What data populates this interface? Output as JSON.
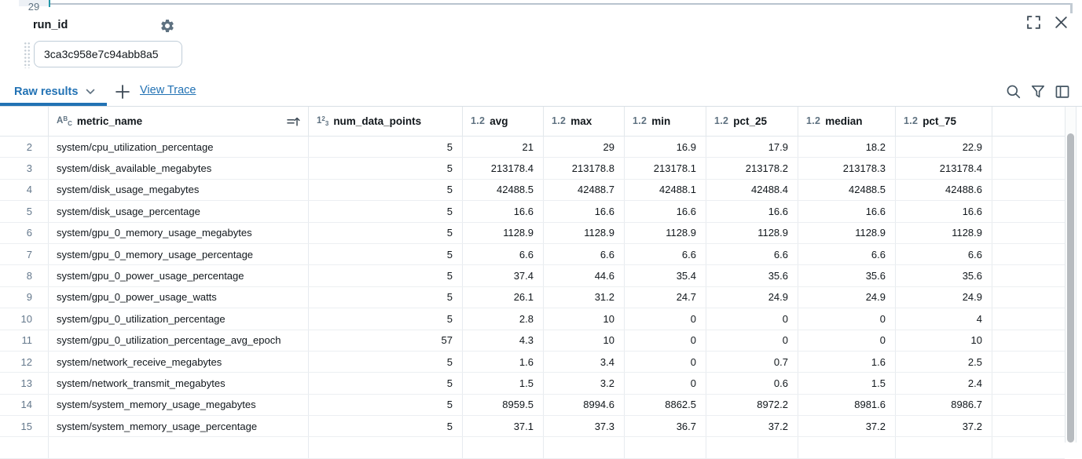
{
  "editor": {
    "line_number": "29"
  },
  "widget": {
    "label": "run_id",
    "value": "3ca3c958e7c94abb8a5"
  },
  "toolbar": {
    "active_tab": "Raw results",
    "view_trace": "View Trace"
  },
  "icons": {
    "settings": "gear",
    "fullscreen": "expand-corners",
    "close": "x",
    "search": "magnifier",
    "filter": "funnel",
    "panel": "layout-panel",
    "sort": "sort-ascending",
    "tab_caret": "chevron-down",
    "add": "plus",
    "drag": "grip-dots"
  },
  "type_glyphs": {
    "string": [
      "A",
      "B",
      "C"
    ],
    "int": [
      "1",
      "2",
      "3"
    ],
    "float": "1.2"
  },
  "colors": {
    "accent_blue": "#2272B4",
    "icon_slate": "#5F7281",
    "text_dark": "#11171C",
    "row_number": "#64788C",
    "border": "#E2E7EB",
    "cursor_teal": "#2497A8",
    "scroll_thumb": "#B7BBBF"
  },
  "table": {
    "columns": [
      {
        "label": "metric_name",
        "type": "string",
        "sorted": "asc"
      },
      {
        "label": "num_data_points",
        "type": "int"
      },
      {
        "label": "avg",
        "type": "float"
      },
      {
        "label": "max",
        "type": "float"
      },
      {
        "label": "min",
        "type": "float"
      },
      {
        "label": "pct_25",
        "type": "float"
      },
      {
        "label": "median",
        "type": "float"
      },
      {
        "label": "pct_75",
        "type": "float"
      }
    ],
    "rows": [
      {
        "n": "2",
        "cells": [
          "system/cpu_utilization_percentage",
          "5",
          "21",
          "29",
          "16.9",
          "17.9",
          "18.2",
          "22.9"
        ]
      },
      {
        "n": "3",
        "cells": [
          "system/disk_available_megabytes",
          "5",
          "213178.4",
          "213178.8",
          "213178.1",
          "213178.2",
          "213178.3",
          "213178.4"
        ]
      },
      {
        "n": "4",
        "cells": [
          "system/disk_usage_megabytes",
          "5",
          "42488.5",
          "42488.7",
          "42488.1",
          "42488.4",
          "42488.5",
          "42488.6"
        ]
      },
      {
        "n": "5",
        "cells": [
          "system/disk_usage_percentage",
          "5",
          "16.6",
          "16.6",
          "16.6",
          "16.6",
          "16.6",
          "16.6"
        ]
      },
      {
        "n": "6",
        "cells": [
          "system/gpu_0_memory_usage_megabytes",
          "5",
          "1128.9",
          "1128.9",
          "1128.9",
          "1128.9",
          "1128.9",
          "1128.9"
        ]
      },
      {
        "n": "7",
        "cells": [
          "system/gpu_0_memory_usage_percentage",
          "5",
          "6.6",
          "6.6",
          "6.6",
          "6.6",
          "6.6",
          "6.6"
        ]
      },
      {
        "n": "8",
        "cells": [
          "system/gpu_0_power_usage_percentage",
          "5",
          "37.4",
          "44.6",
          "35.4",
          "35.6",
          "35.6",
          "35.6"
        ]
      },
      {
        "n": "9",
        "cells": [
          "system/gpu_0_power_usage_watts",
          "5",
          "26.1",
          "31.2",
          "24.7",
          "24.9",
          "24.9",
          "24.9"
        ]
      },
      {
        "n": "10",
        "cells": [
          "system/gpu_0_utilization_percentage",
          "5",
          "2.8",
          "10",
          "0",
          "0",
          "0",
          "4"
        ]
      },
      {
        "n": "11",
        "cells": [
          "system/gpu_0_utilization_percentage_avg_epoch",
          "57",
          "4.3",
          "10",
          "0",
          "0",
          "0",
          "10"
        ]
      },
      {
        "n": "12",
        "cells": [
          "system/network_receive_megabytes",
          "5",
          "1.6",
          "3.4",
          "0",
          "0.7",
          "1.6",
          "2.5"
        ]
      },
      {
        "n": "13",
        "cells": [
          "system/network_transmit_megabytes",
          "5",
          "1.5",
          "3.2",
          "0",
          "0.6",
          "1.5",
          "2.4"
        ]
      },
      {
        "n": "14",
        "cells": [
          "system/system_memory_usage_megabytes",
          "5",
          "8959.5",
          "8994.6",
          "8862.5",
          "8972.2",
          "8981.6",
          "8986.7"
        ]
      },
      {
        "n": "15",
        "cells": [
          "system/system_memory_usage_percentage",
          "5",
          "37.1",
          "37.3",
          "36.7",
          "37.2",
          "37.2",
          "37.2"
        ]
      }
    ]
  }
}
